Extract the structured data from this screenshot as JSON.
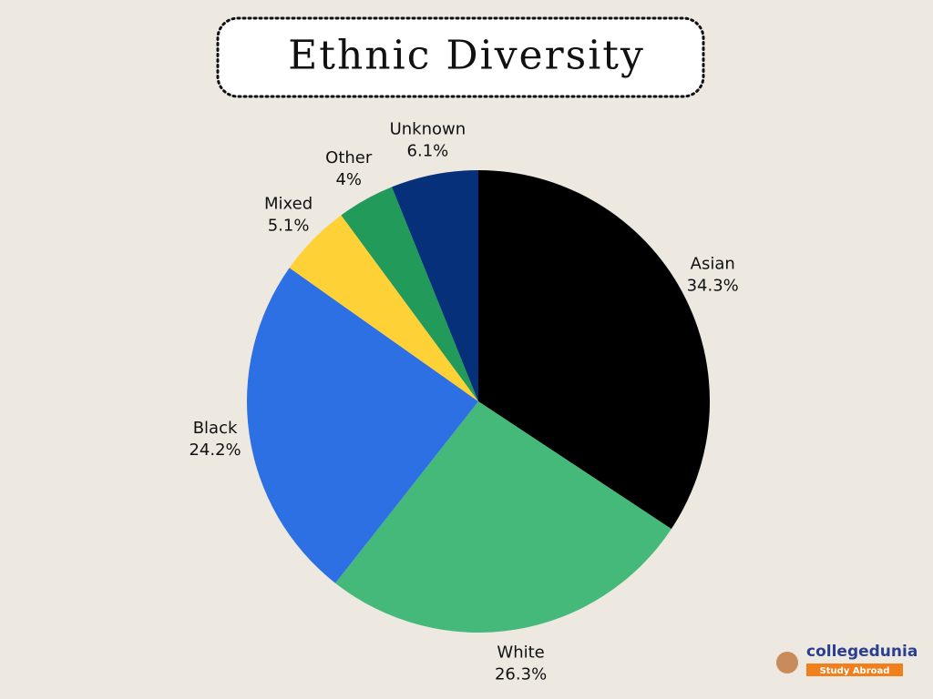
{
  "chart_data": {
    "type": "pie",
    "title": "Ethnic Diversity",
    "categories": [
      "Asian",
      "White",
      "Black",
      "Mixed",
      "Other",
      "Unknown"
    ],
    "values": [
      34.3,
      26.3,
      24.2,
      5.1,
      4,
      6.1
    ],
    "value_labels": [
      "34.3%",
      "26.3%",
      "24.2%",
      "5.1%",
      "4%",
      "6.1%"
    ],
    "colors": [
      "#000000",
      "#45b97a",
      "#2d70e4",
      "#fed136",
      "#229b5a",
      "#07307a"
    ]
  },
  "logo": {
    "name": "collegedunia",
    "tagline": "Study Abroad"
  }
}
